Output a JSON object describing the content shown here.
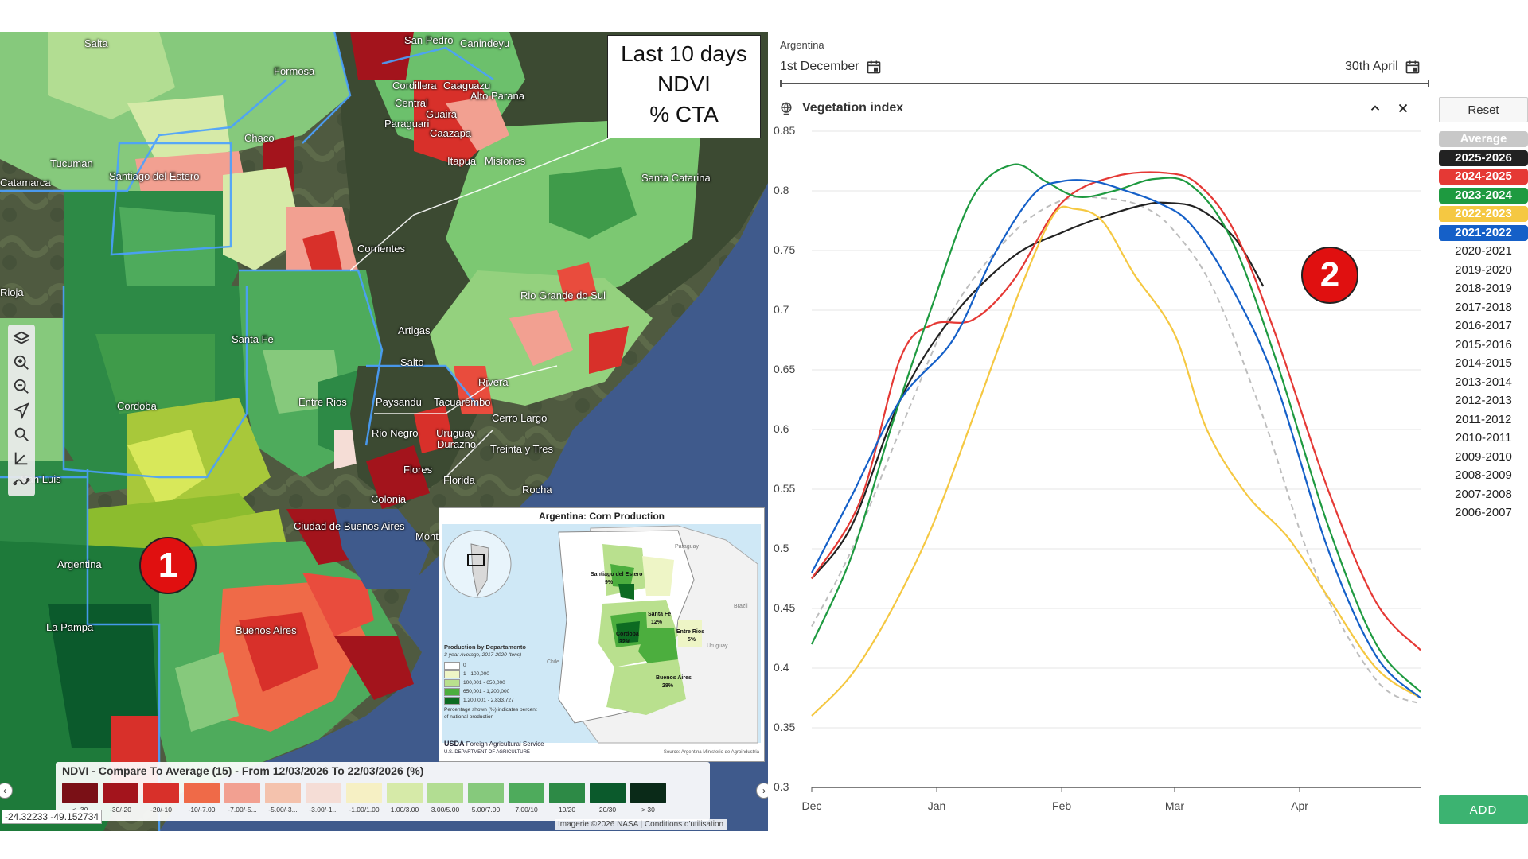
{
  "map": {
    "overlay_box": {
      "line1": "Last 10 days",
      "line2": "NDVI",
      "line3": "% CTA"
    },
    "marker_1": "1",
    "place_labels": [
      "Salta",
      "San Pedro",
      "Canindeyu",
      "Formosa",
      "Cordillera",
      "Caaguazu",
      "Alto Parana",
      "Central",
      "Guaira",
      "Paraguari",
      "Caazapa",
      "Tucuman",
      "Chaco",
      "Itapua",
      "Misiones",
      "Catamarca",
      "Santiago del Estero",
      "Santa Catarina",
      "Corrientes",
      "Rioja",
      "Rio Grande do Sul",
      "Santa Fe",
      "Artigas",
      "Salto",
      "Rivera",
      "Cordoba",
      "Entre Rios",
      "Paysandu",
      "Tacuarembo",
      "Rio Negro",
      "Cerro Largo",
      "Uruguay",
      "Durazno",
      "Treinta y Tres",
      "San Luis",
      "Flores",
      "Florida",
      "Rocha",
      "Colonia",
      "Ciudad de Buenos Aires",
      "Montevideo",
      "Argentina",
      "La Pampa",
      "Buenos Aires"
    ],
    "toolbar_icons": [
      "layers-icon",
      "zoom-in-icon",
      "zoom-out-icon",
      "locate-icon",
      "search-icon",
      "measure-icon",
      "draw-icon"
    ],
    "legend": {
      "title": "NDVI - Compare To Average (15) - From 12/03/2026 To 22/03/2026 (%)",
      "items": [
        {
          "label": "< -30",
          "color": "#7a1016"
        },
        {
          "label": "-30/-20",
          "color": "#a3141c"
        },
        {
          "label": "-20/-10",
          "color": "#d8302a"
        },
        {
          "label": "-10/-7.00",
          "color": "#ef6a48"
        },
        {
          "label": "-7.00/-5...",
          "color": "#f2a091"
        },
        {
          "label": "-5.00/-3...",
          "color": "#f4c2ad"
        },
        {
          "label": "-3.00/-1...",
          "color": "#f5ddd6"
        },
        {
          "label": "-1.00/1.00",
          "color": "#f6f0c4"
        },
        {
          "label": "1.00/3.00",
          "color": "#d6eaa8"
        },
        {
          "label": "3.00/5.00",
          "color": "#b2dd92"
        },
        {
          "label": "5.00/7.00",
          "color": "#86c97c"
        },
        {
          "label": "7.00/10",
          "color": "#4eab5c"
        },
        {
          "label": "10/20",
          "color": "#2d8a46"
        },
        {
          "label": "20/30",
          "color": "#0b5a2c"
        },
        {
          "label": "> 30",
          "color": "#0a2a18"
        }
      ]
    },
    "coordinate_readout": "-24.32233 -49.152734",
    "attribution": "Imagerie ©2026 NASA | Conditions d'utilisation",
    "inset": {
      "title": "Argentina: Corn Production",
      "legend_heading": "Production by Departamento",
      "legend_subheading": "3-year Average, 2017-2020 (tons)",
      "legend_items": [
        {
          "label": "0",
          "color": "#ffffff"
        },
        {
          "label": "1 - 100,000",
          "color": "#eef5c6"
        },
        {
          "label": "100,001 - 650,000",
          "color": "#b9e08e"
        },
        {
          "label": "650,001 - 1,200,000",
          "color": "#4cae3e"
        },
        {
          "label": "1,200,001 - 2,833,727",
          "color": "#0d6b22"
        }
      ],
      "legend_note": "Percentage shown (%) indicates percent of national production",
      "region_labels": [
        {
          "name": "Santiago del Estero",
          "pct": "9%"
        },
        {
          "name": "Santa Fe",
          "pct": "12%"
        },
        {
          "name": "Entre Rios",
          "pct": "5%"
        },
        {
          "name": "Cordoba",
          "pct": "32%"
        },
        {
          "name": "Buenos Aires",
          "pct": "28%"
        }
      ],
      "country_labels": [
        "Paraguay",
        "Brazil",
        "Uruguay",
        "Chile"
      ],
      "agency": "Foreign Agricultural Service",
      "agency_logo": "USDA",
      "dept": "U.S. DEPARTMENT OF AGRICULTURE",
      "source": "Source: Argentina Ministerio de Agroindustria"
    }
  },
  "chart_panel": {
    "country": "Argentina",
    "start_date": "1st December",
    "end_date": "30th April",
    "title": "Vegetation index",
    "reset_label": "Reset",
    "add_label": "ADD",
    "marker_2": "2",
    "seasons": [
      {
        "label": "Average",
        "color": "#c8c8c8",
        "active": true
      },
      {
        "label": "2025-2026",
        "color": "#222222",
        "active": true
      },
      {
        "label": "2024-2025",
        "color": "#e53935",
        "active": true
      },
      {
        "label": "2023-2024",
        "color": "#1e9a40",
        "active": true
      },
      {
        "label": "2022-2023",
        "color": "#f5c842",
        "active": true
      },
      {
        "label": "2021-2022",
        "color": "#1560c8",
        "active": true
      },
      {
        "label": "2020-2021",
        "active": false
      },
      {
        "label": "2019-2020",
        "active": false
      },
      {
        "label": "2018-2019",
        "active": false
      },
      {
        "label": "2017-2018",
        "active": false
      },
      {
        "label": "2016-2017",
        "active": false
      },
      {
        "label": "2015-2016",
        "active": false
      },
      {
        "label": "2014-2015",
        "active": false
      },
      {
        "label": "2013-2014",
        "active": false
      },
      {
        "label": "2012-2013",
        "active": false
      },
      {
        "label": "2011-2012",
        "active": false
      },
      {
        "label": "2010-2011",
        "active": false
      },
      {
        "label": "2009-2010",
        "active": false
      },
      {
        "label": "2008-2009",
        "active": false
      },
      {
        "label": "2007-2008",
        "active": false
      },
      {
        "label": "2006-2007",
        "active": false
      }
    ]
  },
  "chart_data": {
    "type": "line",
    "title": "Vegetation index",
    "x_label": "",
    "y_label": "",
    "x_ticks": [
      {
        "label": "Dec",
        "day": 0
      },
      {
        "label": "Jan",
        "day": 31
      },
      {
        "label": "Feb",
        "day": 62
      },
      {
        "label": "Mar",
        "day": 90
      },
      {
        "label": "Apr",
        "day": 121
      }
    ],
    "x_range": [
      0,
      151
    ],
    "y_range": [
      0.3,
      0.85
    ],
    "y_ticks": [
      "0.3",
      "0.35",
      "0.4",
      "0.45",
      "0.5",
      "0.55",
      "0.6",
      "0.65",
      "0.7",
      "0.75",
      "0.8",
      "0.85"
    ],
    "grid": true,
    "series": [
      {
        "name": "Average",
        "color": "#bdbdbd",
        "dashed": true,
        "x": [
          0,
          10,
          22,
          35,
          50,
          62,
          72,
          82,
          90,
          100,
          112,
          125,
          140,
          151
        ],
        "y": [
          0.435,
          0.5,
          0.6,
          0.7,
          0.765,
          0.792,
          0.794,
          0.787,
          0.766,
          0.715,
          0.61,
          0.48,
          0.39,
          0.37
        ]
      },
      {
        "name": "2025-2026",
        "color": "#222222",
        "dashed": false,
        "x": [
          0,
          10,
          22,
          35,
          50,
          62,
          72,
          82,
          88,
          96,
          105,
          112
        ],
        "y": [
          0.475,
          0.52,
          0.625,
          0.695,
          0.745,
          0.765,
          0.778,
          0.788,
          0.79,
          0.785,
          0.76,
          0.72
        ]
      },
      {
        "name": "2024-2025",
        "color": "#e53935",
        "dashed": false,
        "x": [
          0,
          12,
          22,
          30,
          40,
          50,
          62,
          75,
          88,
          96,
          105,
          115,
          128,
          140,
          151
        ],
        "y": [
          0.475,
          0.54,
          0.66,
          0.688,
          0.692,
          0.725,
          0.79,
          0.812,
          0.815,
          0.805,
          0.765,
          0.68,
          0.55,
          0.455,
          0.415
        ]
      },
      {
        "name": "2023-2024",
        "color": "#1e9a40",
        "dashed": false,
        "x": [
          0,
          10,
          20,
          30,
          40,
          50,
          58,
          66,
          75,
          85,
          94,
          104,
          115,
          128,
          140,
          151
        ],
        "y": [
          0.42,
          0.495,
          0.605,
          0.705,
          0.795,
          0.822,
          0.808,
          0.795,
          0.8,
          0.81,
          0.805,
          0.76,
          0.66,
          0.52,
          0.42,
          0.38
        ]
      },
      {
        "name": "2022-2023",
        "color": "#f5c842",
        "dashed": false,
        "x": [
          0,
          10,
          20,
          30,
          40,
          52,
          60,
          65,
          72,
          80,
          90,
          98,
          108,
          118,
          128,
          140,
          151
        ],
        "y": [
          0.36,
          0.395,
          0.45,
          0.52,
          0.61,
          0.72,
          0.78,
          0.785,
          0.775,
          0.73,
          0.68,
          0.6,
          0.545,
          0.51,
          0.46,
          0.4,
          0.375
        ]
      },
      {
        "name": "2021-2022",
        "color": "#1560c8",
        "dashed": false,
        "x": [
          0,
          10,
          22,
          35,
          45,
          55,
          62,
          70,
          78,
          86,
          94,
          104,
          115,
          128,
          140,
          151
        ],
        "y": [
          0.48,
          0.545,
          0.625,
          0.675,
          0.745,
          0.797,
          0.808,
          0.808,
          0.8,
          0.79,
          0.772,
          0.72,
          0.64,
          0.5,
          0.41,
          0.375
        ]
      }
    ]
  }
}
